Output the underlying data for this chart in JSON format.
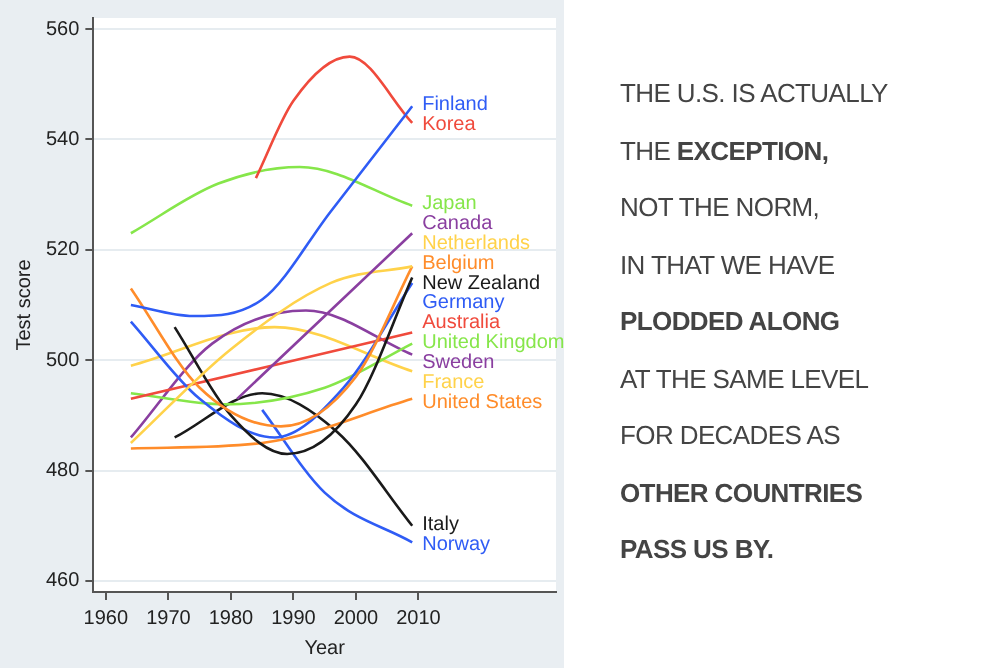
{
  "chart_data": {
    "type": "line",
    "xlabel": "Year",
    "ylabel": "Test score",
    "xlim": [
      1958,
      2032
    ],
    "xticks": [
      1960,
      1970,
      1980,
      1990,
      2000,
      2010
    ],
    "ylim": [
      458,
      562
    ],
    "yticks": [
      460,
      480,
      500,
      520,
      540,
      560
    ],
    "grid": "y",
    "legend": false,
    "marker": "none",
    "line_style": "solid",
    "series": [
      {
        "name": "Finland",
        "color": "#2f5cf5",
        "x": [
          1964,
          1974,
          1985,
          1996,
          2009
        ],
        "values": [
          510,
          508,
          511,
          527,
          546
        ]
      },
      {
        "name": "Korea",
        "color": "#f04a3c",
        "x": [
          1984,
          1990,
          1999,
          2009
        ],
        "values": [
          533,
          547,
          555,
          543
        ]
      },
      {
        "name": "Japan",
        "color": "#86e64a",
        "x": [
          1964,
          1978,
          1991,
          2009
        ],
        "values": [
          523,
          532,
          535,
          528
        ]
      },
      {
        "name": "Canada",
        "color": "#8a3fa0",
        "x": [
          1981,
          2009
        ],
        "values": [
          493,
          523
        ]
      },
      {
        "name": "Netherlands",
        "color": "#ffd24a",
        "x": [
          1964,
          1980,
          1996,
          2009
        ],
        "values": [
          485,
          502,
          514,
          517
        ]
      },
      {
        "name": "Belgium",
        "color": "#ff8c2a",
        "x": [
          1964,
          1975,
          1988,
          2000,
          2009
        ],
        "values": [
          513,
          495,
          488,
          497,
          517
        ]
      },
      {
        "name": "New Zealand",
        "color": "#1a1a1a",
        "x": [
          1971,
          1980,
          1989,
          2000,
          2009
        ],
        "values": [
          506,
          490,
          483,
          492,
          515
        ]
      },
      {
        "name": "Germany",
        "color": "#2f5cf5",
        "x": [
          1964,
          1975,
          1987,
          1998,
          2009
        ],
        "values": [
          507,
          493,
          486,
          495,
          514
        ]
      },
      {
        "name": "Australia",
        "color": "#f04a3c",
        "x": [
          1964,
          2009
        ],
        "values": [
          493,
          505
        ]
      },
      {
        "name": "United Kingdom",
        "color": "#86e64a",
        "x": [
          1964,
          1979,
          1995,
          2009
        ],
        "values": [
          494,
          492,
          495,
          503
        ]
      },
      {
        "name": "Sweden",
        "color": "#8a3fa0",
        "x": [
          1964,
          1977,
          1992,
          2009
        ],
        "values": [
          486,
          503,
          509,
          501
        ]
      },
      {
        "name": "France",
        "color": "#ffd24a",
        "x": [
          1964,
          1987,
          2009
        ],
        "values": [
          499,
          506,
          498
        ]
      },
      {
        "name": "United States",
        "color": "#ff8c2a",
        "x": [
          1964,
          1985,
          2009
        ],
        "values": [
          484,
          485,
          493
        ]
      },
      {
        "name": "Italy",
        "color": "#1a1a1a",
        "x": [
          1971,
          1985,
          1997,
          2009
        ],
        "values": [
          486,
          494,
          487,
          470
        ]
      },
      {
        "name": "Norway",
        "color": "#2f5cf5",
        "x": [
          1985,
          1995,
          2009
        ],
        "values": [
          491,
          476,
          467
        ]
      }
    ],
    "annotations": [
      "THE U.S. IS ACTUALLY",
      "THE EXCEPTION,",
      "NOT THE NORM,",
      "IN THAT WE HAVE",
      "PLODDED ALONG",
      "AT THE SAME LEVEL",
      "FOR DECADES AS",
      "OTHER COUNTRIES",
      "PASS US BY."
    ]
  }
}
